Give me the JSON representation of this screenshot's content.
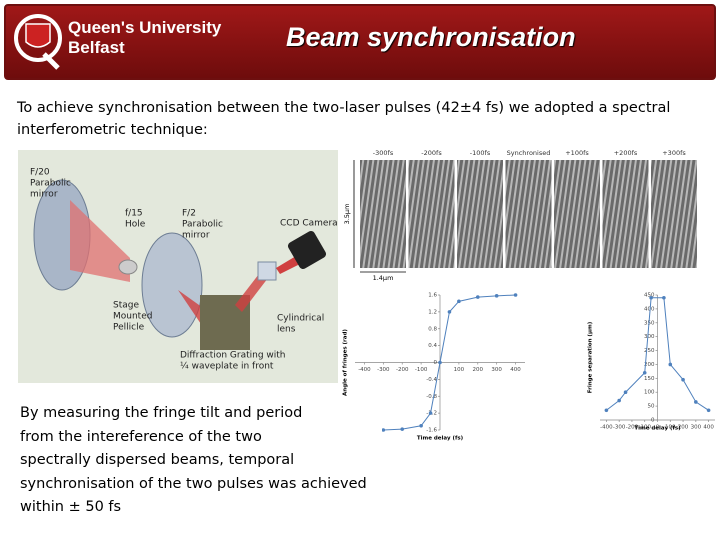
{
  "header": {
    "logo_line1": "Queen's University",
    "logo_line2": "Belfast",
    "title": "Beam synchronisation"
  },
  "intro": "To achieve synchronisation between the two-laser pulses (42±4 fs) we adopted a spectral interferometric technique:",
  "diagram": {
    "labels": [
      [
        "F/20",
        "Parabolic",
        "mirror"
      ],
      [
        "f/15",
        "Hole"
      ],
      [
        "F/2",
        "Parabolic",
        "mirror"
      ],
      [
        "CCD Camera"
      ],
      [
        "Stage",
        "Mounted",
        "Pellicle"
      ],
      [
        "Cylindrical",
        "lens"
      ],
      [
        "Diffraction Grating with",
        "¼ waveplate in front"
      ]
    ]
  },
  "fringes": {
    "delays": [
      "-300fs",
      "-200fs",
      "-100fs",
      "Synchronised",
      "+100fs",
      "+200fs",
      "+300fs"
    ],
    "height_label": "3.5µm",
    "width_label": "1.4µm"
  },
  "summary": [
    "By measuring the fringe tilt and period",
    "from the intereference of the two",
    "spectrally dispersed beams, temporal",
    "synchronisation of the two pulses was achieved",
    "within ± 50 fs"
  ],
  "chart_data": [
    {
      "type": "line",
      "x_label": "Time delay (fs)",
      "y_label": "Angle of fringes (rad)",
      "color": "#4f81bd",
      "x": [
        -400,
        -300,
        -200,
        -100,
        -50,
        0,
        50,
        100,
        200,
        300,
        400
      ],
      "values": [
        -1.6,
        -1.6,
        -1.58,
        -1.5,
        -1.2,
        0,
        1.2,
        1.45,
        1.55,
        1.58,
        1.6
      ],
      "xlim": [
        -450,
        450
      ],
      "ylim": [
        -1.6,
        1.6
      ],
      "xticks": [
        -400,
        -300,
        -200,
        -100,
        100,
        200,
        300,
        400
      ],
      "yticks": [
        -1.6,
        -1.2,
        -0.8,
        -0.4,
        0,
        0.4,
        0.8,
        1.2,
        1.6
      ]
    },
    {
      "type": "line",
      "x_label": "Time delay (fs)",
      "y_label": "Fringe separation (µm)",
      "color": "#4f81bd",
      "x": [
        -400,
        -300,
        -250,
        -100,
        -50,
        50,
        100,
        200,
        300,
        400
      ],
      "values": [
        35,
        70,
        100,
        170,
        440,
        440,
        200,
        145,
        65,
        35
      ],
      "xlim": [
        -450,
        450
      ],
      "ylim": [
        0,
        450
      ],
      "xticks": [
        -400,
        -300,
        -200,
        -100,
        0,
        100,
        200,
        300,
        400
      ],
      "yticks": [
        0,
        50,
        100,
        150,
        200,
        250,
        300,
        350,
        400,
        450
      ]
    }
  ]
}
